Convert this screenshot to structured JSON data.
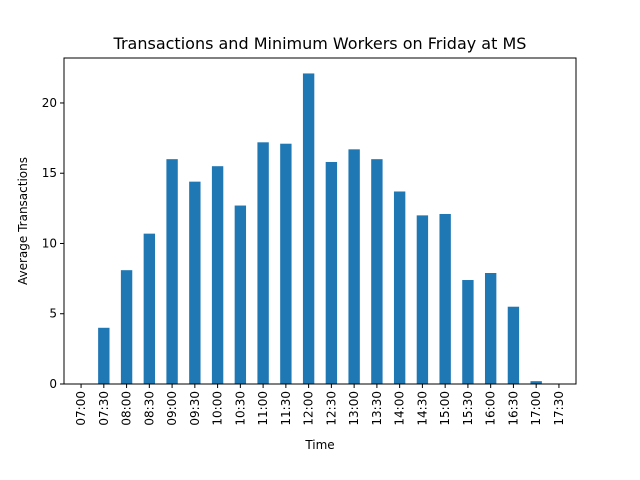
{
  "chart_data": {
    "type": "bar",
    "title": "Transactions and Minimum Workers on Friday at MS",
    "xlabel": "Time",
    "ylabel": "Average Transactions",
    "categories": [
      "07:00",
      "07:30",
      "08:00",
      "08:30",
      "09:00",
      "09:30",
      "10:00",
      "10:30",
      "11:00",
      "11:30",
      "12:00",
      "12:30",
      "13:00",
      "13:30",
      "14:00",
      "14:30",
      "15:00",
      "15:30",
      "16:00",
      "16:30",
      "17:00",
      "17:30"
    ],
    "values": [
      0,
      4.0,
      8.1,
      10.7,
      16.0,
      14.4,
      15.5,
      12.7,
      17.2,
      17.1,
      22.1,
      15.8,
      16.7,
      16.0,
      13.7,
      12.0,
      12.1,
      7.4,
      7.9,
      5.5,
      0.2,
      0
    ],
    "yticks": [
      0,
      5,
      10,
      15,
      20
    ],
    "ylim": [
      0,
      23.2
    ],
    "grid": false,
    "colors": {
      "bar": "#1f77b4",
      "axis": "#000000",
      "background": "#ffffff"
    }
  }
}
